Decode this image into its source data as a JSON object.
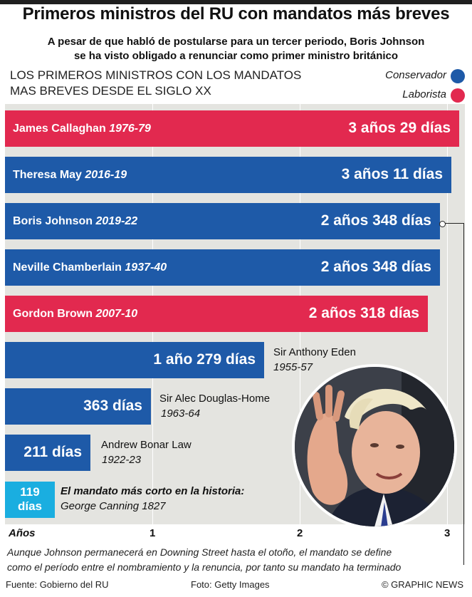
{
  "header": {
    "title": "Primeros ministros del RU con mandatos más breves",
    "subtitle_line1": "A pesar de que habló de postularse para un tercer periodo, Boris Johnson",
    "subtitle_line2": "se ha visto obligado a renunciar como primer ministro británico",
    "heading_line1": "LOS PRIMEROS MINISTROS CON LOS MANDATOS",
    "heading_line2": "MAS BREVES DESDE EL SIGLO XX"
  },
  "colors": {
    "conservative": "#1e5aa8",
    "labour": "#e2294f",
    "cyan": "#1aaee0",
    "plot_bg": "#e4e4e0"
  },
  "chart_data": {
    "type": "bar",
    "orientation": "horizontal",
    "xlabel": "Años",
    "xlim": [
      0,
      3.05
    ],
    "xticks": [
      "1",
      "2",
      "3"
    ],
    "legend": [
      {
        "name": "Conservador",
        "party": "conservative"
      },
      {
        "name": "Laborista",
        "party": "labour"
      }
    ],
    "legend_position": "top-right",
    "bars": [
      {
        "name": "James Callaghan",
        "years": "1976-79",
        "label": "3 años 29 días",
        "value": 3.08,
        "party": "labour",
        "label_inside": true
      },
      {
        "name": "Theresa May",
        "years": "2016-19",
        "label": "3 años 11 días",
        "value": 3.03,
        "party": "conservative",
        "label_inside": true
      },
      {
        "name": "Boris Johnson",
        "years": "2019-22",
        "label": "2 años 348 días",
        "value": 2.95,
        "party": "conservative",
        "label_inside": true
      },
      {
        "name": "Neville Chamberlain",
        "years": "1937-40",
        "label": "2 años 348 días",
        "value": 2.95,
        "party": "conservative",
        "label_inside": true
      },
      {
        "name": "Gordon Brown",
        "years": "2007-10",
        "label": "2 años 318 días",
        "value": 2.87,
        "party": "labour",
        "label_inside": true
      },
      {
        "name": "Sir Anthony Eden",
        "years": "1955-57",
        "label": "1 año  279 días",
        "value": 1.76,
        "party": "conservative",
        "label_inside": false
      },
      {
        "name": "Sir Alec Douglas-Home",
        "years": "1963-64",
        "label": "363 días",
        "value": 0.99,
        "party": "conservative",
        "label_inside": false
      },
      {
        "name": "Andrew Bonar Law",
        "years": "1922-23",
        "label": "211 días",
        "value": 0.58,
        "party": "conservative",
        "label_inside": false
      }
    ],
    "shortest": {
      "label_line1": "119",
      "label_line2": "días",
      "value": 0.33,
      "title": "El mandato más corto en la historia:",
      "name_years": "George Canning 1827"
    }
  },
  "note_line1": "Aunque Johnson permanecerá en Downing Street hasta el otoño, el mandato se define",
  "note_line2": "como el período entre el nombramiento y la renuncia, por tanto su mandato ha terminado",
  "footer": {
    "source": "Fuente: Gobierno del RU",
    "photo": "Foto: Getty Images",
    "credit": "© GRAPHIC NEWS"
  }
}
